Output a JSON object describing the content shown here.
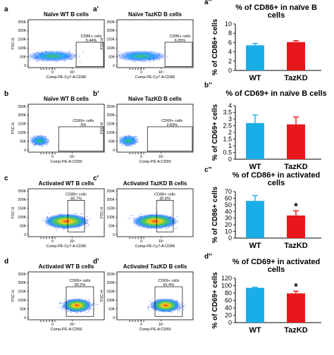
{
  "flow_panels": [
    {
      "letter": "a",
      "title": "Naïve WT B cells",
      "gate": "CD86+ cells",
      "pct": "5.44%",
      "x_label": "Comp-PE-Cy7-A:CD86",
      "y_label": "FSC-H",
      "y_ticks": [
        "250K",
        "200K",
        "150K",
        "100K",
        "50K",
        "0"
      ],
      "x_ticks": [
        "0",
        "10⁴"
      ],
      "cloud": "naive-low"
    },
    {
      "letter": "a'",
      "title": "Naïve TazKD B cells",
      "gate": "CD86+ cells",
      "pct": "6.05%",
      "x_label": "Comp-PE-Cy7-A:CD86",
      "y_label": "FSC-H",
      "y_ticks": [
        "250K",
        "200K",
        "150K",
        "100K",
        "50K",
        "0"
      ],
      "x_ticks": [
        "0",
        "10⁴"
      ],
      "cloud": "naive-low"
    },
    {
      "letter": "b",
      "title": "Naïve WT B cells",
      "gate": "CD69+ cells",
      "pct": "3%",
      "x_label": "Comp-PE-A:CD69",
      "y_label": "FSC-H",
      "y_ticks": [
        "250K",
        "200K",
        "150K",
        "100K",
        "50K",
        "0"
      ],
      "x_ticks": [
        "0",
        "10⁴"
      ],
      "cloud": "naive-left"
    },
    {
      "letter": "b'",
      "title": "Naïve TazKD B cells",
      "gate": "CD69+ cells",
      "pct": "2.83%",
      "x_label": "Comp-PE-A:CD69",
      "y_label": "FSC-H",
      "y_ticks": [
        "250K",
        "200K",
        "150K",
        "100K",
        "50K",
        "0"
      ],
      "x_ticks": [
        "0",
        "10⁴"
      ],
      "cloud": "naive-left"
    },
    {
      "letter": "c",
      "title": "Activated WT B cells",
      "gate": "CD86+ cells",
      "pct": "60.7%",
      "x_label": "Comp-PE-Cy7-A:CD86",
      "y_label": "FSC-H",
      "y_ticks": [
        "250K",
        "200K",
        "150K",
        "100K",
        "50K",
        "0"
      ],
      "x_ticks": [
        "0",
        "10⁴"
      ],
      "cloud": "activated-wide"
    },
    {
      "letter": "c'",
      "title": "Activated TazKD B cells",
      "gate": "CD86+ cells",
      "pct": "30.8%",
      "x_label": "Comp-PE-Cy7-A:CD86",
      "y_label": "FSC-H",
      "y_ticks": [
        "250K",
        "200K",
        "150K",
        "100K",
        "50K",
        "0"
      ],
      "x_ticks": [
        "0",
        "10⁴"
      ],
      "cloud": "activated-wide"
    },
    {
      "letter": "d",
      "title": "Activated WT B cells",
      "gate": "CD69+ cells",
      "pct": "93.2%",
      "x_label": "Comp-PE-A:CD69",
      "y_label": "FSC-H",
      "y_ticks": [
        "250K",
        "200K",
        "150K",
        "100K",
        "50K",
        "0"
      ],
      "x_ticks": [
        "0",
        "10⁴"
      ],
      "cloud": "activated-right"
    },
    {
      "letter": "d'",
      "title": "Activated TazKD B cells",
      "gate": "CD69+ cells",
      "pct": "81.4%",
      "x_label": "Comp-PE-A:CD69",
      "y_label": "FSC-H",
      "y_ticks": [
        "250K",
        "200K",
        "150K",
        "100K",
        "50K",
        "0"
      ],
      "x_ticks": [
        "0",
        "10⁴"
      ],
      "cloud": "activated-right"
    }
  ],
  "chart_data": [
    {
      "type": "bar",
      "letter": "a''",
      "title_lines": [
        "% of CD86+ in naïve B",
        "cells"
      ],
      "ylabel": "% of CD86+ cells",
      "categories": [
        "WT",
        "TazKD"
      ],
      "values": [
        5.4,
        6.1
      ],
      "errors": [
        0.4,
        0.3
      ],
      "ylim": [
        0,
        10
      ],
      "yticks": [
        0,
        2,
        4,
        6,
        8,
        10
      ],
      "significance": [
        "",
        ""
      ],
      "colors": [
        "#1aaee8",
        "#e8171c"
      ]
    },
    {
      "type": "bar",
      "letter": "b''",
      "title_lines": [
        "% of CD69+ in naïve B cells"
      ],
      "ylabel": "% of CD69+ cells",
      "categories": [
        "WT",
        "TazKD"
      ],
      "values": [
        2.7,
        2.6
      ],
      "errors": [
        0.6,
        0.55
      ],
      "ylim": [
        0,
        4
      ],
      "yticks": [
        0,
        0.5,
        1,
        1.5,
        2,
        2.5,
        3,
        3.5,
        4
      ],
      "significance": [
        "",
        ""
      ],
      "colors": [
        "#1aaee8",
        "#e8171c"
      ]
    },
    {
      "type": "bar",
      "letter": "c''",
      "title_lines": [
        "% of CD86+ in activated",
        "cells"
      ],
      "ylabel": "% of CD86+ cells",
      "categories": [
        "WT",
        "TazKD"
      ],
      "values": [
        56,
        34
      ],
      "errors": [
        8,
        7
      ],
      "ylim": [
        0,
        70
      ],
      "yticks": [
        0,
        10,
        20,
        30,
        40,
        50,
        60,
        70
      ],
      "significance": [
        "",
        "*"
      ],
      "colors": [
        "#1aaee8",
        "#e8171c"
      ]
    },
    {
      "type": "bar",
      "letter": "d''",
      "title_lines": [
        "% of CD69+ in activated",
        "cells"
      ],
      "ylabel": "% of CD69+ cells",
      "categories": [
        "WT",
        "TazKD"
      ],
      "values": [
        94,
        79
      ],
      "errors": [
        1.5,
        6
      ],
      "ylim": [
        0,
        120
      ],
      "yticks": [
        0,
        20,
        40,
        60,
        80,
        100,
        120
      ],
      "significance": [
        "",
        "*"
      ],
      "colors": [
        "#1aaee8",
        "#e8171c"
      ]
    }
  ]
}
